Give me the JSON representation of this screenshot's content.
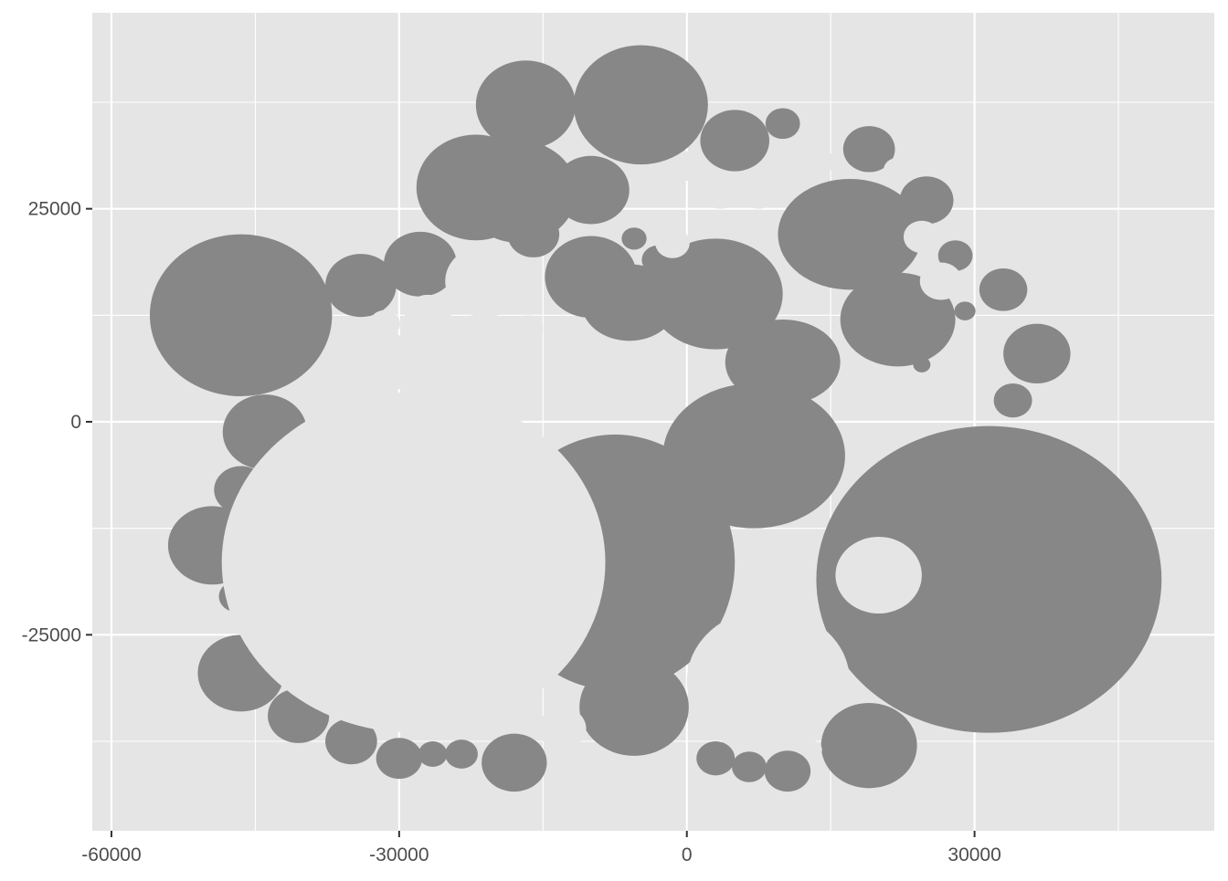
{
  "chart_data": {
    "type": "polygon",
    "title": "",
    "xlabel": "",
    "ylabel": "",
    "xlim": [
      -62000,
      55000
    ],
    "ylim": [
      -48000,
      48000
    ],
    "x_ticks": [
      {
        "value": -60000,
        "label": "-60000"
      },
      {
        "value": -30000,
        "label": "-30000"
      },
      {
        "value": 0,
        "label": "0"
      },
      {
        "value": 30000,
        "label": "30000"
      }
    ],
    "y_ticks": [
      {
        "value": 25000,
        "label": "25000"
      },
      {
        "value": 0,
        "label": "0"
      },
      {
        "value": -25000,
        "label": "-25000"
      }
    ],
    "x_minor": [
      -45000,
      -15000,
      15000,
      45000
    ],
    "y_minor": [
      37500,
      12500,
      -12500,
      -37500
    ],
    "grid": true,
    "legend": "none",
    "colors": {
      "panel": "#E5E5E5",
      "grid": "#FFFFFF",
      "fill": "#878787",
      "text": "#4D4D4D",
      "tick": "#333333"
    },
    "polygons": [
      {
        "cx": -7500,
        "cy": -16500,
        "rx": 12500,
        "ry": 15000
      },
      {
        "cx": 7000,
        "cy": -4000,
        "rx": 9500,
        "ry": 8500
      },
      {
        "cx": 3000,
        "cy": 15000,
        "rx": 7000,
        "ry": 6500
      },
      {
        "cx": 10000,
        "cy": 7000,
        "rx": 6000,
        "ry": 5000
      },
      {
        "cx": 17000,
        "cy": 22000,
        "rx": 7500,
        "ry": 6500
      },
      {
        "cx": 22000,
        "cy": 12000,
        "rx": 6000,
        "ry": 5500
      },
      {
        "cx": -6000,
        "cy": 14000,
        "rx": 5000,
        "ry": 4500
      },
      {
        "cx": -17500,
        "cy": 27000,
        "rx": 6000,
        "ry": 6000
      }
    ],
    "ellipses": [
      {
        "cx": -46500,
        "cy": 12500,
        "rx": 9500,
        "ry": 9500,
        "fill": "gray"
      },
      {
        "cx": -22000,
        "cy": 27500,
        "rx": 6200,
        "ry": 6200,
        "fill": "gray"
      },
      {
        "cx": -16800,
        "cy": 37200,
        "rx": 5200,
        "ry": 5200,
        "fill": "gray"
      },
      {
        "cx": -4800,
        "cy": 37200,
        "rx": 7000,
        "ry": 7000,
        "fill": "gray"
      },
      {
        "cx": -10000,
        "cy": 27200,
        "rx": 4000,
        "ry": 4000,
        "fill": "gray"
      },
      {
        "cx": -16000,
        "cy": 22000,
        "rx": 2700,
        "ry": 2700,
        "fill": "gray"
      },
      {
        "cx": -27800,
        "cy": 18500,
        "rx": 3800,
        "ry": 3800,
        "fill": "gray"
      },
      {
        "cx": -34000,
        "cy": 16000,
        "rx": 3700,
        "ry": 3700,
        "fill": "gray"
      },
      {
        "cx": -22000,
        "cy": 7500,
        "rx": 5000,
        "ry": 5000,
        "fill": "light"
      },
      {
        "cx": -30500,
        "cy": 7000,
        "rx": 3200,
        "ry": 3200,
        "fill": "light"
      },
      {
        "cx": -31500,
        "cy": 11500,
        "rx": 1600,
        "ry": 1600,
        "fill": "light"
      },
      {
        "cx": -27000,
        "cy": 12500,
        "rx": 2400,
        "ry": 2400,
        "fill": "light"
      },
      {
        "cx": -21000,
        "cy": 16500,
        "rx": 4200,
        "ry": 4200,
        "fill": "light"
      },
      {
        "cx": -10000,
        "cy": 17000,
        "rx": 4800,
        "ry": 4800,
        "fill": "gray"
      },
      {
        "cx": -16500,
        "cy": 11000,
        "rx": 1500,
        "ry": 1500,
        "fill": "light"
      },
      {
        "cx": -3000,
        "cy": 19000,
        "rx": 1700,
        "ry": 1700,
        "fill": "gray"
      },
      {
        "cx": -5500,
        "cy": 21500,
        "rx": 1300,
        "ry": 1300,
        "fill": "gray"
      },
      {
        "cx": -1500,
        "cy": 21000,
        "rx": 1800,
        "ry": 1800,
        "fill": "light"
      },
      {
        "cx": 1000,
        "cy": 30000,
        "rx": 2000,
        "ry": 2000,
        "fill": "light"
      },
      {
        "cx": 3500,
        "cy": 27500,
        "rx": 2500,
        "ry": 2500,
        "fill": "light"
      },
      {
        "cx": 7500,
        "cy": 27000,
        "rx": 2000,
        "ry": 2000,
        "fill": "light"
      },
      {
        "cx": 5000,
        "cy": 33000,
        "rx": 3600,
        "ry": 3600,
        "fill": "gray"
      },
      {
        "cx": 10000,
        "cy": 35000,
        "rx": 1800,
        "ry": 1800,
        "fill": "gray"
      },
      {
        "cx": 11000,
        "cy": 30500,
        "rx": 2800,
        "ry": 2800,
        "fill": "light"
      },
      {
        "cx": 14500,
        "cy": 30500,
        "rx": 1100,
        "ry": 1100,
        "fill": "light"
      },
      {
        "cx": 19000,
        "cy": 32000,
        "rx": 2700,
        "ry": 2700,
        "fill": "gray"
      },
      {
        "cx": 22000,
        "cy": 29500,
        "rx": 1500,
        "ry": 1500,
        "fill": "light"
      },
      {
        "cx": 25000,
        "cy": 26000,
        "rx": 2800,
        "ry": 2800,
        "fill": "gray"
      },
      {
        "cx": 24500,
        "cy": 21700,
        "rx": 1900,
        "ry": 1900,
        "fill": "light"
      },
      {
        "cx": 28000,
        "cy": 19500,
        "rx": 1800,
        "ry": 1800,
        "fill": "gray"
      },
      {
        "cx": 26500,
        "cy": 16500,
        "rx": 2200,
        "ry": 2200,
        "fill": "light"
      },
      {
        "cx": 26500,
        "cy": 12500,
        "rx": 1200,
        "ry": 1200,
        "fill": "gray"
      },
      {
        "cx": 29000,
        "cy": 13000,
        "rx": 1100,
        "ry": 1100,
        "fill": "gray"
      },
      {
        "cx": 33000,
        "cy": 15500,
        "rx": 2500,
        "ry": 2500,
        "fill": "gray"
      },
      {
        "cx": 36500,
        "cy": 8000,
        "rx": 3500,
        "ry": 3500,
        "fill": "gray"
      },
      {
        "cx": 34000,
        "cy": 2500,
        "rx": 2000,
        "ry": 2000,
        "fill": "gray"
      },
      {
        "cx": 24500,
        "cy": 6700,
        "rx": 900,
        "ry": 900,
        "fill": "gray"
      },
      {
        "cx": 31500,
        "cy": -18500,
        "rx": 18000,
        "ry": 18000,
        "fill": "gray"
      },
      {
        "cx": 20000,
        "cy": -18000,
        "rx": 4500,
        "ry": 4500,
        "fill": "light"
      },
      {
        "cx": 8500,
        "cy": -30500,
        "rx": 8500,
        "ry": 8500,
        "fill": "light"
      },
      {
        "cx": 19000,
        "cy": -38000,
        "rx": 5000,
        "ry": 5000,
        "fill": "gray"
      },
      {
        "cx": 3000,
        "cy": -39500,
        "rx": 2000,
        "ry": 2000,
        "fill": "gray"
      },
      {
        "cx": 6500,
        "cy": -40500,
        "rx": 1800,
        "ry": 1800,
        "fill": "gray"
      },
      {
        "cx": 10500,
        "cy": -41000,
        "rx": 2400,
        "ry": 2400,
        "fill": "gray"
      },
      {
        "cx": 13000,
        "cy": -38500,
        "rx": 1100,
        "ry": 1100,
        "fill": "light"
      },
      {
        "cx": -5500,
        "cy": -33500,
        "rx": 5700,
        "ry": 5700,
        "fill": "gray"
      },
      {
        "cx": -13000,
        "cy": -36000,
        "rx": 2500,
        "ry": 2500,
        "fill": "light"
      },
      {
        "cx": -18000,
        "cy": -40000,
        "rx": 3400,
        "ry": 3400,
        "fill": "gray"
      },
      {
        "cx": -23500,
        "cy": -39000,
        "rx": 1700,
        "ry": 1700,
        "fill": "gray"
      },
      {
        "cx": -26500,
        "cy": -39000,
        "rx": 1500,
        "ry": 1500,
        "fill": "gray"
      },
      {
        "cx": -30000,
        "cy": -39500,
        "rx": 2400,
        "ry": 2400,
        "fill": "gray"
      },
      {
        "cx": -35000,
        "cy": -37500,
        "rx": 2700,
        "ry": 2700,
        "fill": "gray"
      },
      {
        "cx": -40500,
        "cy": -34500,
        "rx": 3200,
        "ry": 3200,
        "fill": "gray"
      },
      {
        "cx": -46500,
        "cy": -29500,
        "rx": 4500,
        "ry": 4500,
        "fill": "gray"
      },
      {
        "cx": -49500,
        "cy": -14500,
        "rx": 4600,
        "ry": 4600,
        "fill": "gray"
      },
      {
        "cx": -46500,
        "cy": -8000,
        "rx": 2800,
        "ry": 2800,
        "fill": "gray"
      },
      {
        "cx": -44000,
        "cy": -1200,
        "rx": 4400,
        "ry": 4400,
        "fill": "gray"
      },
      {
        "cx": -47000,
        "cy": -20500,
        "rx": 1800,
        "ry": 1800,
        "fill": "gray"
      },
      {
        "cx": -45500,
        "cy": -24000,
        "rx": 1200,
        "ry": 1200,
        "fill": "gray"
      },
      {
        "cx": -28500,
        "cy": -16500,
        "rx": 20000,
        "ry": 20000,
        "fill": "light"
      }
    ]
  }
}
